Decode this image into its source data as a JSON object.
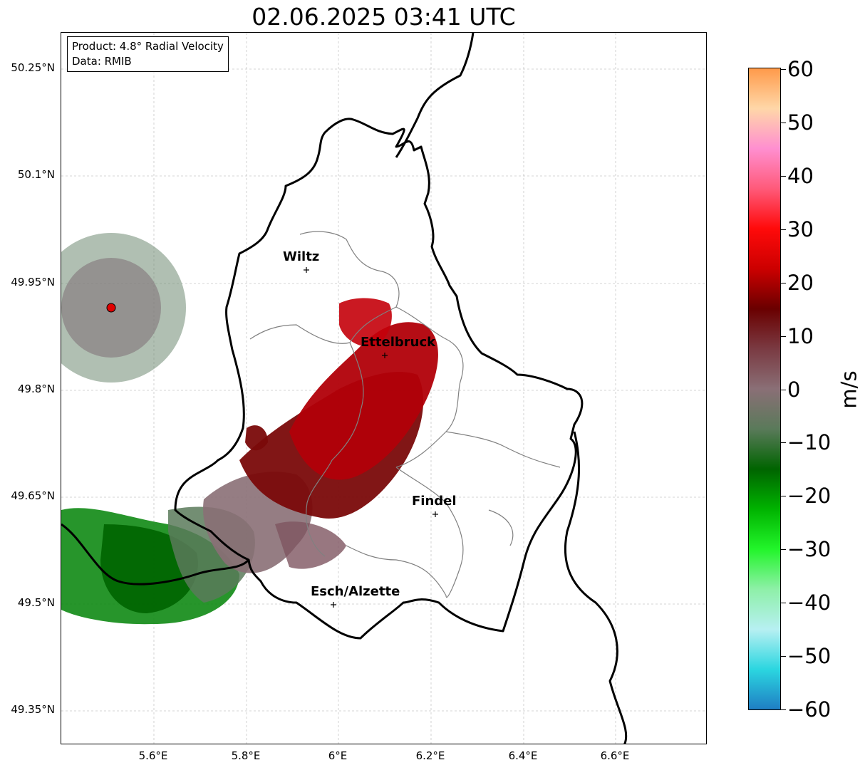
{
  "title": "02.06.2025 03:41 UTC",
  "info": {
    "product": "Product: 4.8° Radial Velocity",
    "data": "Data: RMIB"
  },
  "lat_labels": [
    "50.25°N",
    "50.1°N",
    "49.95°N",
    "49.8°N",
    "49.65°N",
    "49.5°N",
    "49.35°N"
  ],
  "lon_labels": [
    "5.6°E",
    "5.8°E",
    "6°E",
    "6.2°E",
    "6.4°E",
    "6.6°E"
  ],
  "cities": [
    {
      "name": "Wiltz"
    },
    {
      "name": "Ettelbruck"
    },
    {
      "name": "Findel"
    },
    {
      "name": "Esch/Alzette"
    }
  ],
  "colorbar": {
    "unit": "m/s",
    "ticks": [
      "60",
      "50",
      "40",
      "30",
      "20",
      "10",
      "0",
      "−10",
      "−20",
      "−30",
      "−40",
      "−50",
      "−60"
    ],
    "min": -60,
    "max": 60,
    "stops": [
      "#1f7ec4",
      "#2bd6e0",
      "#b7f0f2",
      "#8ef0a8",
      "#22f52a",
      "#00b300",
      "#006400",
      "#5a7a5a",
      "#8a6f76",
      "#7a3a42",
      "#6a0000",
      "#cc0000",
      "#ff0a0a",
      "#ff5a7a",
      "#ff8fd0",
      "#ffd7a8",
      "#ff9a4a"
    ]
  },
  "radar_site": {
    "color": "#e00000"
  }
}
